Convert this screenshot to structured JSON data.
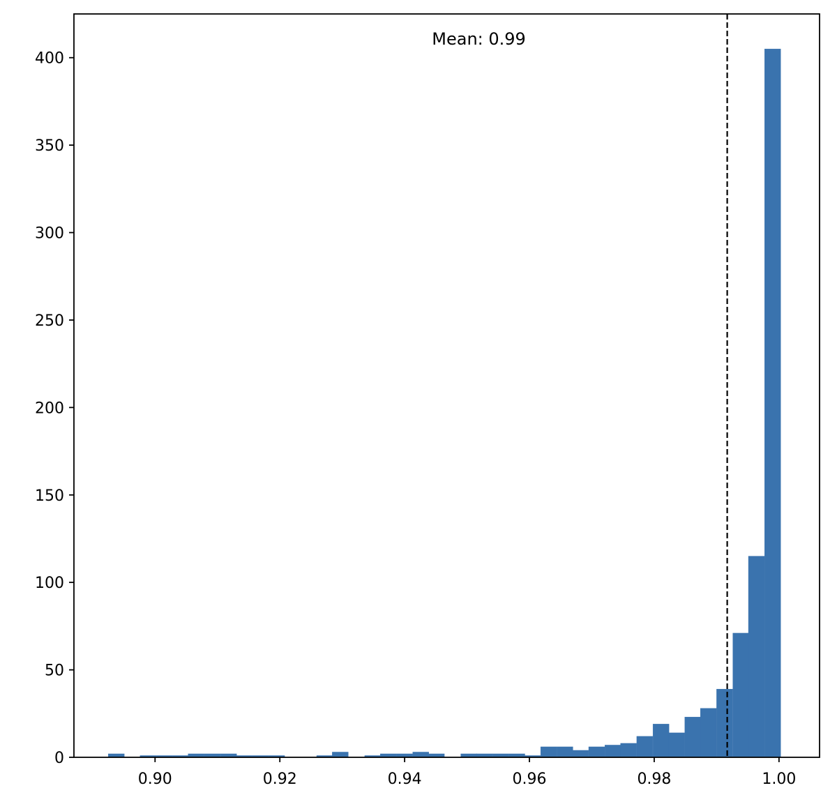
{
  "chart_data": {
    "type": "bar",
    "subtype": "histogram",
    "title": "",
    "xlabel": "",
    "ylabel": "",
    "xlim": [
      0.887,
      1.0065
    ],
    "ylim": [
      0,
      425
    ],
    "x_ticks": [
      0.9,
      0.92,
      0.94,
      0.96,
      0.98,
      1.0
    ],
    "x_tick_labels": [
      "0.90",
      "0.92",
      "0.94",
      "0.96",
      "0.98",
      "1.00"
    ],
    "y_ticks": [
      0,
      50,
      100,
      150,
      200,
      250,
      300,
      350,
      400
    ],
    "y_tick_labels": [
      "0",
      "50",
      "100",
      "150",
      "200",
      "250",
      "300",
      "350",
      "400"
    ],
    "bar_color": "#3a73ae",
    "bin_width": 0.00257,
    "bins": [
      {
        "x0": 0.8925,
        "count": 2
      },
      {
        "x0": 0.8976,
        "count": 1
      },
      {
        "x0": 0.9002,
        "count": 1
      },
      {
        "x0": 0.9028,
        "count": 1
      },
      {
        "x0": 0.9053,
        "count": 2
      },
      {
        "x0": 0.9079,
        "count": 2
      },
      {
        "x0": 0.9105,
        "count": 2
      },
      {
        "x0": 0.913,
        "count": 1
      },
      {
        "x0": 0.9156,
        "count": 1
      },
      {
        "x0": 0.9182,
        "count": 1
      },
      {
        "x0": 0.9259,
        "count": 1
      },
      {
        "x0": 0.9284,
        "count": 3
      },
      {
        "x0": 0.9336,
        "count": 1
      },
      {
        "x0": 0.9361,
        "count": 2
      },
      {
        "x0": 0.9387,
        "count": 2
      },
      {
        "x0": 0.9413,
        "count": 3
      },
      {
        "x0": 0.9438,
        "count": 2
      },
      {
        "x0": 0.949,
        "count": 2
      },
      {
        "x0": 0.9515,
        "count": 2
      },
      {
        "x0": 0.9541,
        "count": 2
      },
      {
        "x0": 0.9567,
        "count": 2
      },
      {
        "x0": 0.9592,
        "count": 1
      },
      {
        "x0": 0.9618,
        "count": 6
      },
      {
        "x0": 0.9644,
        "count": 6
      },
      {
        "x0": 0.9669,
        "count": 4
      },
      {
        "x0": 0.9695,
        "count": 6
      },
      {
        "x0": 0.9721,
        "count": 7
      },
      {
        "x0": 0.9746,
        "count": 8
      },
      {
        "x0": 0.9772,
        "count": 12
      },
      {
        "x0": 0.9798,
        "count": 19
      },
      {
        "x0": 0.9823,
        "count": 14
      },
      {
        "x0": 0.9849,
        "count": 23
      },
      {
        "x0": 0.9874,
        "count": 28
      },
      {
        "x0": 0.99,
        "count": 39
      },
      {
        "x0": 0.9926,
        "count": 71
      },
      {
        "x0": 0.9951,
        "count": 115
      },
      {
        "x0": 0.9977,
        "count": 405
      }
    ],
    "mean_line": {
      "x": 0.9917,
      "style": "dashed",
      "color": "#000000"
    },
    "annotation": {
      "text": "Mean: 0.99",
      "x": 0.9519,
      "y": 405
    }
  }
}
